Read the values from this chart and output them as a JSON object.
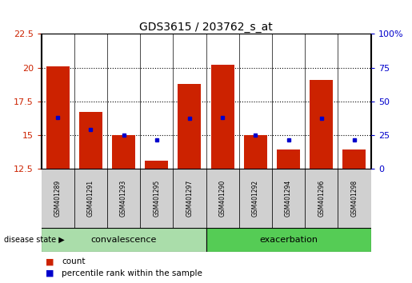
{
  "title": "GDS3615 / 203762_s_at",
  "samples": [
    "GSM401289",
    "GSM401291",
    "GSM401293",
    "GSM401295",
    "GSM401297",
    "GSM401290",
    "GSM401292",
    "GSM401294",
    "GSM401296",
    "GSM401298"
  ],
  "count_values": [
    20.1,
    16.7,
    15.0,
    13.1,
    18.8,
    20.2,
    15.0,
    13.9,
    19.1,
    13.9
  ],
  "percentile_values": [
    16.3,
    15.4,
    15.0,
    14.6,
    16.2,
    16.3,
    15.0,
    14.6,
    16.2,
    14.6
  ],
  "y_min": 12.5,
  "y_max": 22.5,
  "yticks_left": [
    12.5,
    15.0,
    17.5,
    20.0,
    22.5
  ],
  "yticks_left_labels": [
    "12.5",
    "15",
    "17.5",
    "20",
    "22.5"
  ],
  "right_tick_pcts": [
    0,
    25,
    50,
    75,
    100
  ],
  "right_tick_labels": [
    "0",
    "25",
    "50",
    "75",
    "100%"
  ],
  "bar_color": "#cc2200",
  "dot_color": "#0000cc",
  "convalescence_color": "#aaddaa",
  "exacerbation_color": "#55cc55",
  "legend_count_label": "count",
  "legend_pct_label": "percentile rank within the sample",
  "disease_state_label": "disease state",
  "bar_width": 0.7,
  "background_color": "#ffffff",
  "xlabel_area_color": "#cccccc",
  "grid_yticks": [
    15.0,
    17.5,
    20.0
  ]
}
